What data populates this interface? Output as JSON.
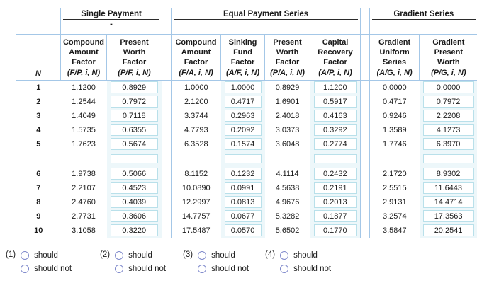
{
  "table": {
    "groups": [
      {
        "label": "Single Payment",
        "sub": "-"
      },
      {
        "label": "Equal Payment Series",
        "sub": ""
      },
      {
        "label": "Gradient Series",
        "sub": ""
      }
    ],
    "n_header": "N",
    "columns": [
      {
        "title": "Compound\nAmount\nFactor",
        "formula": "(F/P, i, N)"
      },
      {
        "title": "Present\nWorth\nFactor",
        "formula": "(P/F, i, N)"
      },
      {
        "title": "Compound\nAmount\nFactor",
        "formula": "(F/A, i, N)"
      },
      {
        "title": "Sinking\nFund\nFactor",
        "formula": "(A/F, i, N)"
      },
      {
        "title": "Present\nWorth\nFactor",
        "formula": "(P/A, i, N)"
      },
      {
        "title": "Capital\nRecovery\nFactor",
        "formula": "(A/P, i, N)"
      },
      {
        "title": "Gradient\nUniform\nSeries",
        "formula": "(A/G, i, N)"
      },
      {
        "title": "Gradient\nPresent\nWorth",
        "formula": "(P/G, i, N)"
      }
    ],
    "rows": [
      {
        "n": "1",
        "values": [
          "1.1200",
          "0.8929",
          "1.0000",
          "1.0000",
          "0.8929",
          "1.1200",
          "0.0000",
          "0.0000"
        ]
      },
      {
        "n": "2",
        "values": [
          "1.2544",
          "0.7972",
          "2.1200",
          "0.4717",
          "1.6901",
          "0.5917",
          "0.4717",
          "0.7972"
        ]
      },
      {
        "n": "3",
        "values": [
          "1.4049",
          "0.7118",
          "3.3744",
          "0.2963",
          "2.4018",
          "0.4163",
          "0.9246",
          "2.2208"
        ]
      },
      {
        "n": "4",
        "values": [
          "1.5735",
          "0.6355",
          "4.7793",
          "0.2092",
          "3.0373",
          "0.3292",
          "1.3589",
          "4.1273"
        ]
      },
      {
        "n": "5",
        "values": [
          "1.7623",
          "0.5674",
          "6.3528",
          "0.1574",
          "3.6048",
          "0.2774",
          "1.7746",
          "6.3970"
        ]
      },
      {
        "n": "6",
        "values": [
          "1.9738",
          "0.5066",
          "8.1152",
          "0.1232",
          "4.1114",
          "0.2432",
          "2.1720",
          "8.9302"
        ]
      },
      {
        "n": "7",
        "values": [
          "2.2107",
          "0.4523",
          "10.0890",
          "0.0991",
          "4.5638",
          "0.2191",
          "2.5515",
          "11.6443"
        ]
      },
      {
        "n": "8",
        "values": [
          "2.4760",
          "0.4039",
          "12.2997",
          "0.0813",
          "4.9676",
          "0.2013",
          "2.9131",
          "14.4714"
        ]
      },
      {
        "n": "9",
        "values": [
          "2.7731",
          "0.3606",
          "14.7757",
          "0.0677",
          "5.3282",
          "0.1877",
          "3.2574",
          "17.3563"
        ]
      },
      {
        "n": "10",
        "values": [
          "3.1058",
          "0.3220",
          "17.5487",
          "0.0570",
          "5.6502",
          "0.1770",
          "3.5847",
          "20.2541"
        ]
      }
    ]
  },
  "questions": [
    {
      "number": "(1)",
      "options": [
        "should",
        "should not"
      ]
    },
    {
      "number": "(2)",
      "options": [
        "should",
        "should not"
      ]
    },
    {
      "number": "(3)",
      "options": [
        "should",
        "should not"
      ]
    },
    {
      "number": "(4)",
      "options": [
        "should",
        "should not"
      ]
    }
  ],
  "colors": {
    "grid": "#a4c7e7",
    "box_border": "#b9e0ea",
    "box_strip": "#edf7fa",
    "radio_ring": "#7e88cb",
    "underline": "#2b2b2b",
    "rule": "#a9a9a9"
  }
}
